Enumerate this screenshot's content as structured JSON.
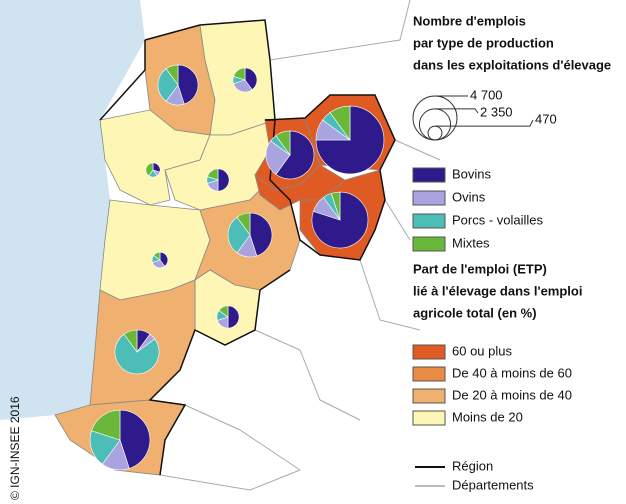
{
  "legend_size": {
    "title": [
      "Nombre d'emplois",
      "par type de production",
      "dans les exploitations d'élevage"
    ],
    "sizes": [
      {
        "value": 4700,
        "label": "4 700"
      },
      {
        "value": 2350,
        "label": "2 350"
      },
      470
    ]
  },
  "production": {
    "types": [
      {
        "name": "Bovins",
        "color": "#2e1a8a"
      },
      {
        "name": "Ovins",
        "color": "#a9a3e0"
      },
      {
        "name": "Porcs - volailles",
        "color": "#4dbdb8"
      },
      {
        "name": "Mixtes",
        "color": "#6ab83a"
      }
    ]
  },
  "pies": [
    {
      "total": 3900,
      "values": [
        45,
        15,
        30,
        10
      ]
    },
    {
      "total": 1400,
      "values": [
        40,
        30,
        10,
        20
      ]
    },
    {
      "total": 5600,
      "values": [
        60,
        25,
        5,
        10
      ]
    },
    {
      "total": 11200,
      "values": [
        75,
        10,
        5,
        10
      ]
    },
    {
      "total": 7600,
      "values": [
        80,
        10,
        5,
        5
      ]
    },
    {
      "total": 1200,
      "values": [
        50,
        20,
        10,
        20
      ]
    },
    {
      "total": 500,
      "values": [
        30,
        10,
        20,
        40
      ]
    },
    {
      "total": 4700,
      "values": [
        45,
        15,
        30,
        10
      ]
    },
    {
      "total": 600,
      "values": [
        40,
        30,
        15,
        15
      ]
    },
    {
      "total": 1200,
      "values": [
        50,
        20,
        15,
        15
      ]
    },
    {
      "total": 4700,
      "values": [
        10,
        5,
        75,
        10
      ]
    },
    {
      "total": 8700,
      "values": [
        45,
        15,
        20,
        20
      ]
    }
  ],
  "share": {
    "title": [
      "Part de l'emploi (ETP)",
      "lié à l'élevage dans l'emploi",
      "agricole total (en %)"
    ],
    "classes": [
      {
        "name": "60 ou plus",
        "color": "#e05a23"
      },
      {
        "name": "De 40 à moins de 60",
        "color": "#eb8a45"
      },
      {
        "name": "De 20 à moins de 40",
        "color": "#f0b070"
      },
      {
        "name": "Moins de 20",
        "color": "#fdf6b4"
      }
    ]
  },
  "boundaries": [
    {
      "name": "Région"
    },
    {
      "name": "Départements"
    }
  ],
  "credit": "© IGN-INSEE 2016"
}
